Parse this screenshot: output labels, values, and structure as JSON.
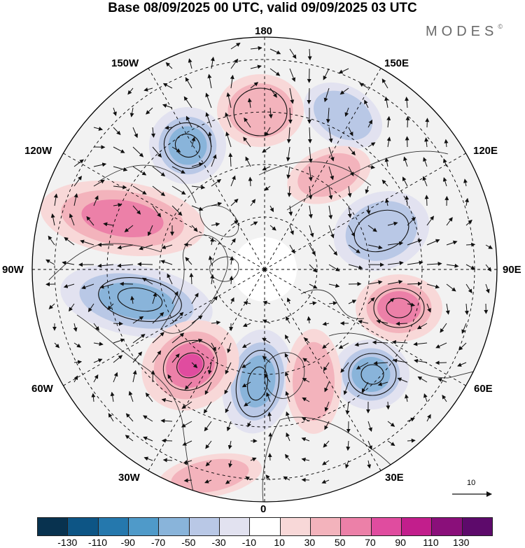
{
  "title": "Base 08/09/2025 00 UTC, valid 09/09/2025 03 UTC",
  "brand": {
    "name": "MODES",
    "mark": "©"
  },
  "longitude_labels": {
    "lon_180": "180",
    "lon_150e": "150E",
    "lon_120e": "120E",
    "lon_90e": "90E",
    "lon_60e": "60E",
    "lon_30e": "30E",
    "lon_0": "0",
    "lon_30w": "30W",
    "lon_60w": "60W",
    "lon_90w": "90W",
    "lon_120w": "120W",
    "lon_150w": "150W"
  },
  "reference_vector": {
    "value": "10"
  },
  "colorbar": {
    "ticks": [
      "-130",
      "-110",
      "-90",
      "-70",
      "-50",
      "-30",
      "-10",
      "10",
      "30",
      "50",
      "70",
      "90",
      "110",
      "130"
    ],
    "colors": [
      "#08324f",
      "#0d5585",
      "#2578ad",
      "#4f9ac9",
      "#89b4da",
      "#b9c8e6",
      "#e2e2f0",
      "#ffffff",
      "#f8d8d8",
      "#f3b3bc",
      "#ec80a8",
      "#e04c9f",
      "#c21e8c",
      "#8a0f7a",
      "#5d0a6b"
    ]
  },
  "anomaly_regions": {
    "pos": [
      {
        "name": "cell-central-atlantic",
        "level": 3
      },
      {
        "name": "cell-north-pacific-east",
        "level": 2
      },
      {
        "name": "cell-north-pacific-west",
        "level": 1
      },
      {
        "name": "cell-west-siberia",
        "level": 2
      },
      {
        "name": "cell-scandinavia",
        "level": 1
      },
      {
        "name": "cell-chukchi",
        "level": 1
      },
      {
        "name": "cell-north-africa",
        "level": 1
      }
    ],
    "neg": [
      {
        "name": "cell-hudson-bay",
        "level": 2
      },
      {
        "name": "cell-alaska-gulf",
        "level": 2
      },
      {
        "name": "cell-north-sea",
        "level": 2
      },
      {
        "name": "cell-ural",
        "level": 2
      },
      {
        "name": "cell-siberia",
        "level": 1
      },
      {
        "name": "cell-east-siberia",
        "level": 1
      }
    ]
  },
  "colors": {
    "ring": "#000000",
    "grid": "#000000",
    "land": "#333333",
    "arrow": "#111111"
  }
}
